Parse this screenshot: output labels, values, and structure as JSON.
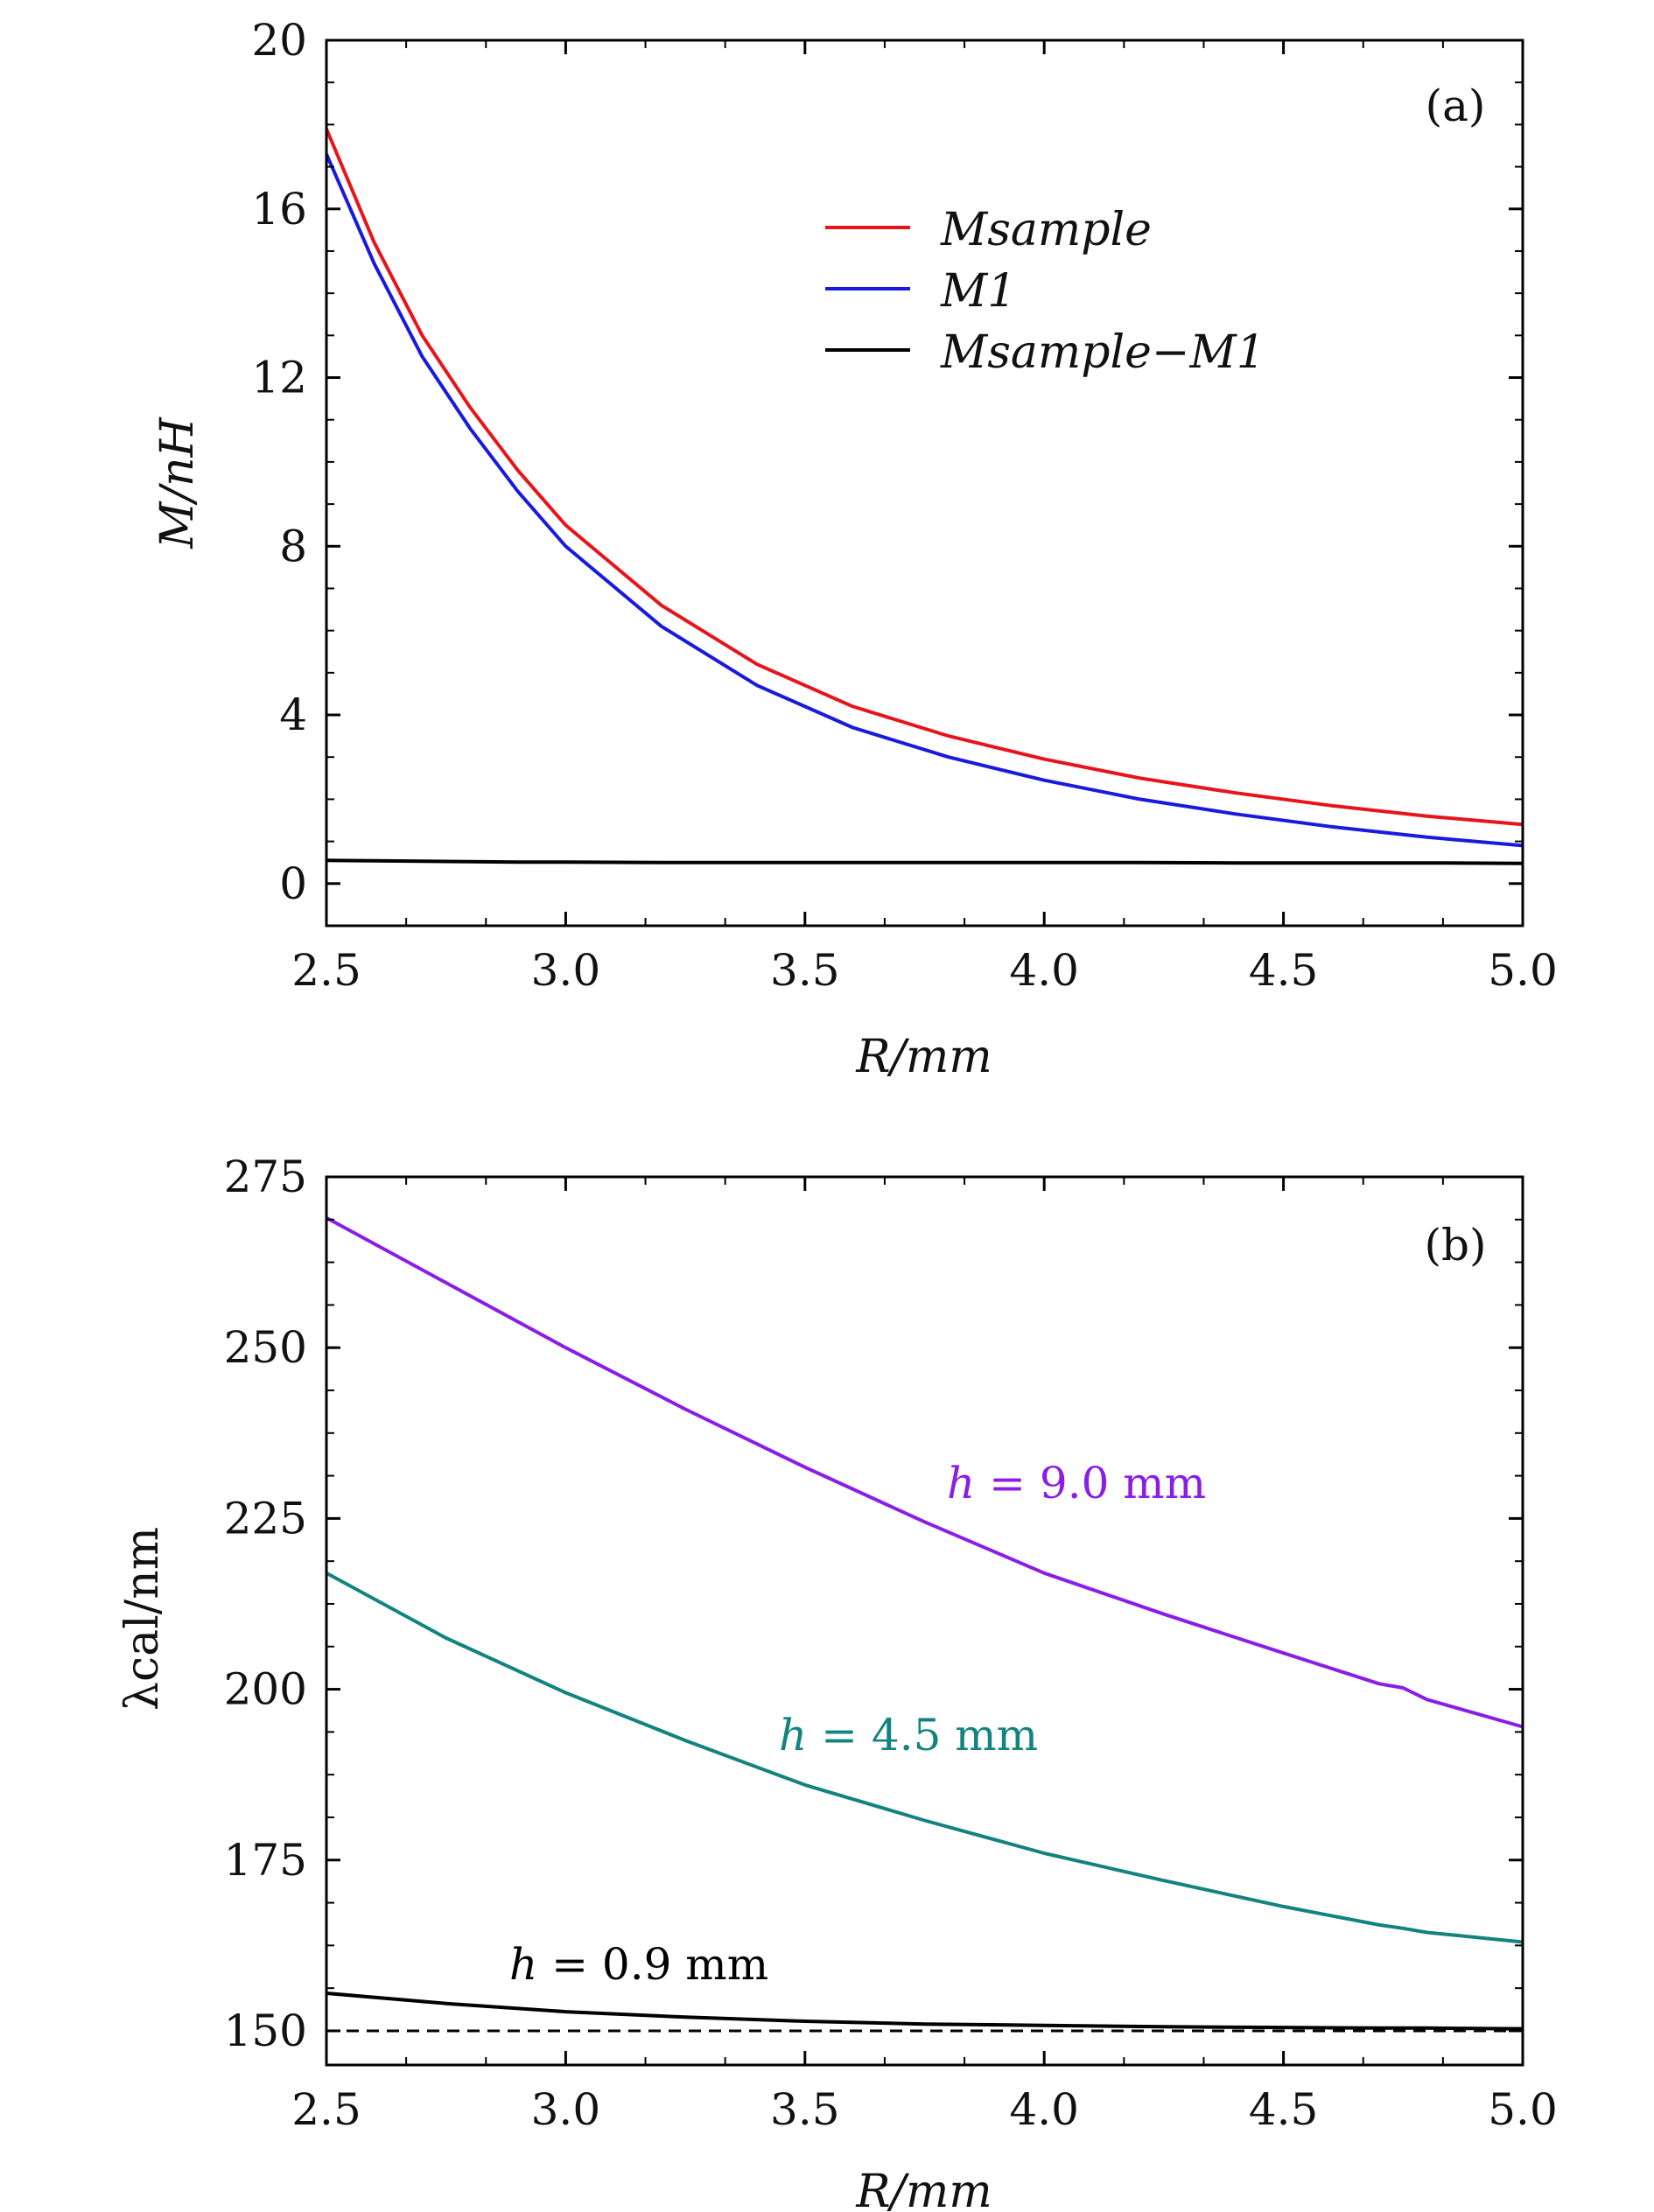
{
  "chart_data": [
    {
      "panel": "(a)",
      "type": "line",
      "xlabel": "R/mm",
      "ylabel": "M/nH",
      "xlim": [
        2.5,
        5.0
      ],
      "ylim": [
        -1,
        20
      ],
      "xticks": [
        "2.5",
        "3.0",
        "3.5",
        "4.0",
        "4.5",
        "5.0"
      ],
      "yticks": [
        "0",
        "4",
        "8",
        "12",
        "16",
        "20"
      ],
      "legend_position": "upper-center",
      "x": [
        2.5,
        2.6,
        2.7,
        2.8,
        2.9,
        3.0,
        3.2,
        3.4,
        3.6,
        3.8,
        4.0,
        4.2,
        4.4,
        4.6,
        4.8,
        5.0
      ],
      "series": [
        {
          "name": "M_sample",
          "legend": "Msample",
          "color": "#e8141c",
          "values": [
            17.9,
            15.2,
            13.0,
            11.3,
            9.8,
            8.5,
            6.6,
            5.2,
            4.2,
            3.5,
            2.95,
            2.5,
            2.15,
            1.85,
            1.6,
            1.4
          ]
        },
        {
          "name": "M_1",
          "legend": "M1",
          "color": "#1a1adf",
          "values": [
            17.3,
            14.7,
            12.5,
            10.8,
            9.3,
            8.0,
            6.1,
            4.7,
            3.7,
            3.0,
            2.45,
            2.0,
            1.65,
            1.35,
            1.1,
            0.9
          ]
        },
        {
          "name": "M_sample - M_1",
          "legend": "Msample−M1",
          "color": "#000000",
          "values": [
            0.55,
            0.54,
            0.53,
            0.52,
            0.51,
            0.51,
            0.5,
            0.5,
            0.5,
            0.5,
            0.5,
            0.5,
            0.49,
            0.49,
            0.49,
            0.48
          ]
        }
      ]
    },
    {
      "panel": "(b)",
      "type": "line",
      "xlabel": "R/mm",
      "ylabel": "λcal/nm",
      "xlim": [
        2.5,
        5.0
      ],
      "ylim": [
        145,
        275
      ],
      "xticks": [
        "2.5",
        "3.0",
        "3.5",
        "4.0",
        "4.5",
        "5.0"
      ],
      "yticks": [
        "150",
        "175",
        "200",
        "225",
        "250",
        "275"
      ],
      "reference_line": {
        "y": 150,
        "style": "dashed",
        "color": "#000000"
      },
      "x": [
        2.5,
        2.75,
        3.0,
        3.25,
        3.5,
        3.75,
        4.0,
        4.25,
        4.5,
        4.7,
        4.75,
        4.8,
        5.0
      ],
      "series": [
        {
          "name": "h = 9.0 mm",
          "label": {
            "h": "h",
            "eq": " = 9.0 mm"
          },
          "color": "#8a1ee6",
          "values": [
            269,
            259.5,
            250,
            241,
            232.5,
            224.5,
            217,
            211,
            205.3,
            200.8,
            200.2,
            198.5,
            194.5
          ]
        },
        {
          "name": "h = 4.5 mm",
          "label": {
            "h": "h",
            "eq": " = 4.5 mm"
          },
          "color": "#13837f",
          "values": [
            217,
            207.5,
            199.5,
            192.5,
            186,
            180.8,
            176,
            172,
            168.2,
            165.5,
            165,
            164.4,
            163
          ]
        },
        {
          "name": "h = 0.9 mm",
          "label": {
            "h": "h",
            "eq": " = 0.9 mm"
          },
          "color": "#000000",
          "values": [
            155.5,
            154,
            152.8,
            152,
            151.4,
            151,
            150.8,
            150.6,
            150.5,
            150.4,
            150.4,
            150.4,
            150.3
          ]
        }
      ]
    }
  ]
}
